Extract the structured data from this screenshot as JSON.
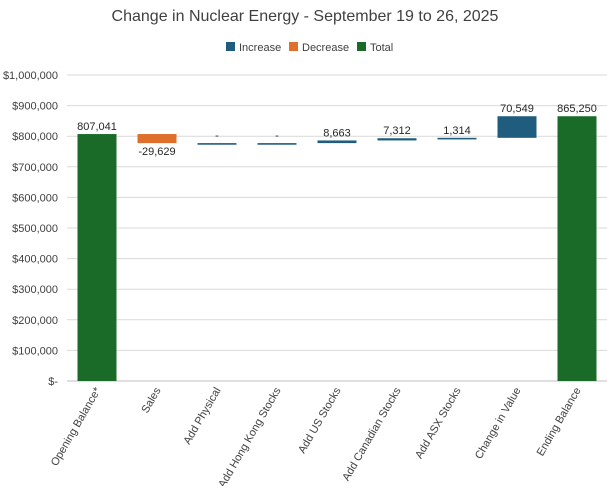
{
  "chart_data": {
    "type": "waterfall",
    "title": "Change in Nuclear Energy - September 19 to 26, 2025",
    "legend": {
      "position": "top-center",
      "entries": [
        {
          "key": "increase",
          "label": "Increase",
          "color": "#1F5C7E"
        },
        {
          "key": "decrease",
          "label": "Decrease",
          "color": "#E06F2D"
        },
        {
          "key": "total",
          "label": "Total",
          "color": "#1B6B28"
        }
      ]
    },
    "ylim": [
      0,
      1000000
    ],
    "yticks": [
      0,
      100000,
      200000,
      300000,
      400000,
      500000,
      600000,
      700000,
      800000,
      900000,
      1000000
    ],
    "ytick_labels": [
      "$-",
      "$100,000",
      "$200,000",
      "$300,000",
      "$400,000",
      "$500,000",
      "$600,000",
      "$700,000",
      "$800,000",
      "$900,000",
      "$1,000,000"
    ],
    "grid": true,
    "categories": [
      "Opening Balance*",
      "Sales",
      "Add Physical",
      "Add Hong Kong Stocks",
      "Add US Stocks",
      "Add  Canadian Stocks",
      "Add ASX Stocks",
      "Change in Value",
      "Ending Balance"
    ],
    "bars": [
      {
        "kind": "total",
        "base": 0,
        "value": 807041,
        "label": "807,041"
      },
      {
        "kind": "decrease",
        "base": 807041,
        "value": -29629,
        "label": "-29,629"
      },
      {
        "kind": "increase",
        "base": 777412,
        "value": 0,
        "label": "-"
      },
      {
        "kind": "increase",
        "base": 777412,
        "value": 0,
        "label": "-"
      },
      {
        "kind": "increase",
        "base": 777412,
        "value": 8663,
        "label": "8,663"
      },
      {
        "kind": "increase",
        "base": 786075,
        "value": 7312,
        "label": "7,312"
      },
      {
        "kind": "increase",
        "base": 793387,
        "value": 1314,
        "label": "1,314"
      },
      {
        "kind": "increase",
        "base": 794701,
        "value": 70549,
        "label": "70,549"
      },
      {
        "kind": "total",
        "base": 0,
        "value": 865250,
        "label": "865,250"
      }
    ]
  }
}
